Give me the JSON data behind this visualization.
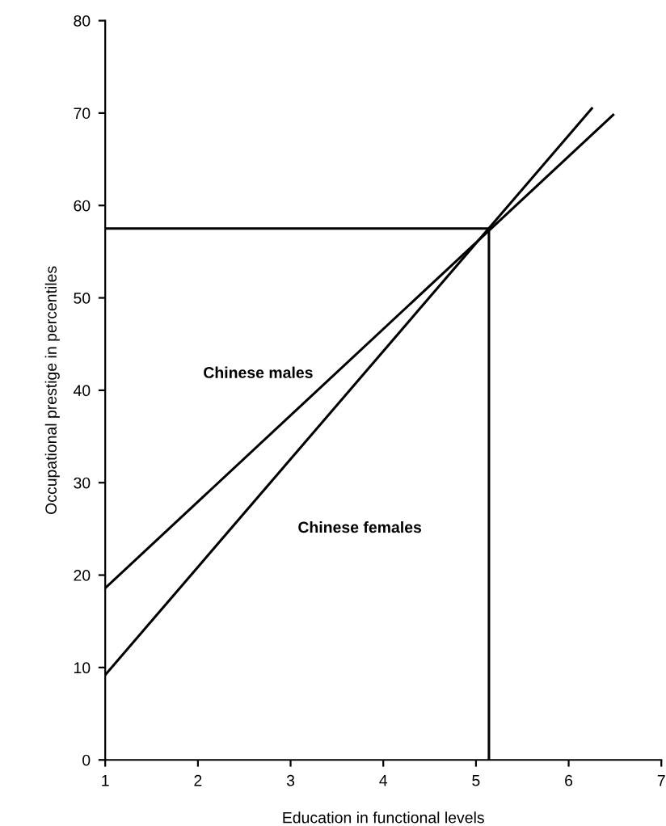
{
  "chart_data": {
    "type": "line",
    "xlabel": "Education in functional levels",
    "ylabel": "Occupational prestige in percentiles",
    "xlim": [
      1,
      7
    ],
    "ylim": [
      0,
      80
    ],
    "xticks": [
      1,
      2,
      3,
      4,
      5,
      6,
      7
    ],
    "yticks": [
      0,
      10,
      20,
      30,
      40,
      50,
      60,
      70,
      80
    ],
    "grid": false,
    "legend": false,
    "marker": "none",
    "line_style": "solid",
    "series": [
      {
        "name": "Chinese males",
        "color": "#000000",
        "x": [
          1,
          6.48
        ],
        "values": [
          18.6,
          69.8
        ]
      },
      {
        "name": "Chinese females",
        "color": "#000000",
        "x": [
          1,
          6.25
        ],
        "values": [
          9.2,
          70.5
        ]
      },
      {
        "color": "#000000",
        "x": [
          1,
          5.14,
          5.14
        ],
        "values": [
          57.5,
          57.5,
          0
        ]
      }
    ]
  }
}
